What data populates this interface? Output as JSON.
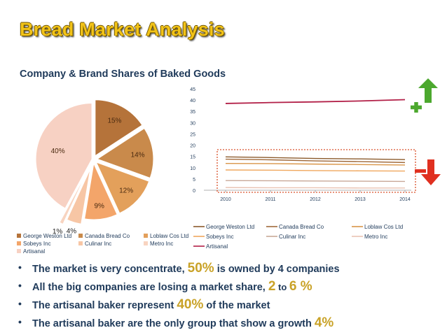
{
  "slide": {
    "title": "Bread Market Analysis",
    "subtitle": "Company & Brand Shares of Baked Goods"
  },
  "chart_data": [
    {
      "type": "pie",
      "title": "",
      "categories": [
        "George Weston Ltd",
        "Canada Bread Co",
        "Loblaw Cos Ltd",
        "Sobeys Inc",
        "Culinar Inc",
        "Metro Inc",
        "Artisanal"
      ],
      "values": [
        15,
        14,
        12,
        9,
        4,
        1,
        40
      ],
      "labels": [
        "15%",
        "14%",
        "12%",
        "9%",
        "4%",
        "1%",
        "40%"
      ],
      "colors": [
        "#b5733a",
        "#c98a4b",
        "#e3a05b",
        "#f3a56a",
        "#f7c6a5",
        "#f8d4c0",
        "#f7d1c3"
      ],
      "legend_placement": "bottom",
      "exploded": true
    },
    {
      "type": "line",
      "title": "",
      "x": [
        "2010",
        "2011",
        "2012",
        "2013",
        "2014"
      ],
      "ylim": [
        0,
        45
      ],
      "yticks": [
        "0",
        "5",
        "10",
        "15",
        "20",
        "25",
        "30",
        "35",
        "40",
        "45"
      ],
      "grid": false,
      "legend_placement": "bottom",
      "series": [
        {
          "name": "George Weston Ltd",
          "values": [
            14.8,
            14.5,
            14.1,
            13.9,
            13.6
          ],
          "color": "#8b5a2b"
        },
        {
          "name": "Canada Bread Co",
          "values": [
            13.8,
            13.5,
            13.0,
            12.7,
            12.3
          ],
          "color": "#a0693a"
        },
        {
          "name": "Loblaw Cos Ltd",
          "values": [
            11.9,
            11.8,
            11.6,
            11.4,
            11.2
          ],
          "color": "#d99548"
        },
        {
          "name": "Sobeys Inc",
          "values": [
            9.0,
            8.9,
            8.7,
            8.6,
            8.5
          ],
          "color": "#f0a75d"
        },
        {
          "name": "Culinar Inc",
          "values": [
            4.3,
            4.2,
            4.1,
            4.0,
            3.9
          ],
          "color": "#c8a898"
        },
        {
          "name": "Metro Inc",
          "values": [
            1.2,
            1.1,
            1.1,
            1.0,
            1.0
          ],
          "color": "#e9c3b3"
        },
        {
          "name": "Artisanal",
          "values": [
            38.5,
            38.9,
            39.2,
            39.6,
            40.2
          ],
          "color": "#b21f47"
        }
      ]
    }
  ],
  "bullets": [
    {
      "pre": "The market is very concentrate, ",
      "hl": "50%",
      "post": " is owned by 4 companies"
    },
    {
      "pre": "All the big companies are losing a market share, ",
      "hl": "2",
      "mid": " to ",
      "hl2": "6 %",
      "post": ""
    },
    {
      "pre": "The artisanal baker represent ",
      "hl": "40%",
      "post": " of the market"
    },
    {
      "pre": "The artisanal baker are the only group that show a growth ",
      "hl": "4%",
      "post": ""
    }
  ],
  "icons": {
    "up": "green-plus-up-arrow-icon",
    "down": "red-minus-down-arrow-icon"
  }
}
